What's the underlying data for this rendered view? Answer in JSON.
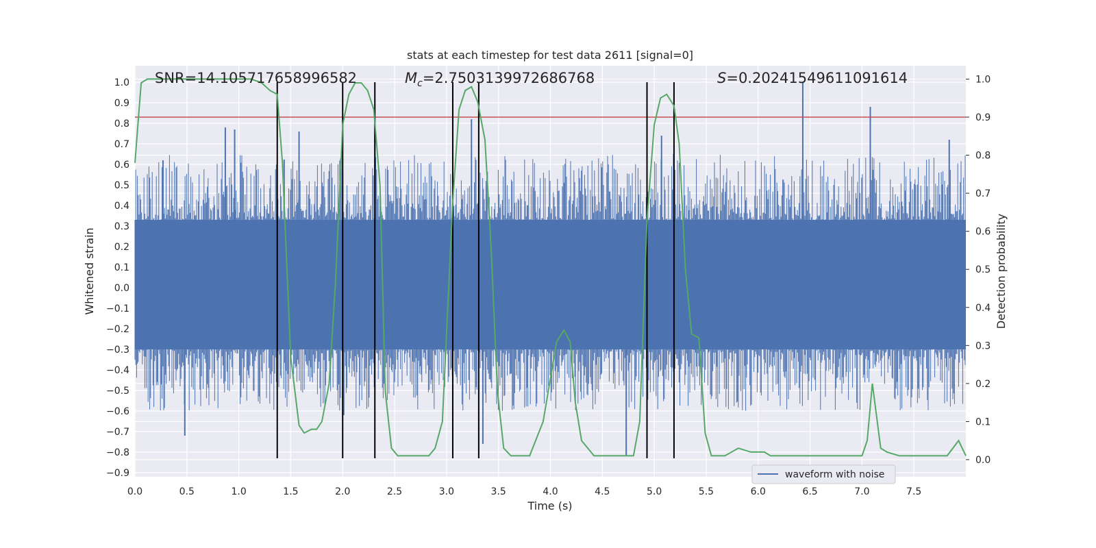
{
  "chart_data": {
    "type": "line",
    "title": "stats at each timestep for test data 2611 [signal=0]",
    "xlabel": "Time (s)",
    "ylabel": "Whitened strain",
    "y2label": "Detection probability",
    "xlim": [
      0.0,
      8.0
    ],
    "ylim": [
      -0.92,
      1.08
    ],
    "y2lim": [
      -0.045,
      1.035
    ],
    "xticks": [
      0.0,
      0.5,
      1.0,
      1.5,
      2.0,
      2.5,
      3.0,
      3.5,
      4.0,
      4.5,
      5.0,
      5.5,
      6.0,
      6.5,
      7.0,
      7.5
    ],
    "yticks": [
      1.0,
      0.9,
      0.8,
      0.7,
      0.6,
      0.5,
      0.4,
      0.3,
      0.2,
      0.1,
      0.0,
      -0.1,
      -0.2,
      -0.3,
      -0.4,
      -0.5,
      -0.6,
      -0.7,
      -0.8,
      -0.9
    ],
    "y2ticks": [
      1.0,
      0.9,
      0.8,
      0.7,
      0.6,
      0.5,
      0.4,
      0.3,
      0.2,
      0.1,
      0.0
    ],
    "annotations": {
      "snr": "SNR=14.105717658996582",
      "mc_symbol": "M",
      "mc_sub": "c",
      "mc_value": "=2.7503139972686768",
      "s_symbol": "S",
      "s_value": "=0.20241549611091614"
    },
    "legend": {
      "label": "waveform with noise",
      "loc": "lower right"
    },
    "threshold": {
      "y2": 0.9,
      "color": "#c44e52"
    },
    "vertical_lines": {
      "x": [
        1.37,
        2.0,
        2.31,
        3.06,
        3.31,
        4.93,
        5.19
      ],
      "y_from": -0.83,
      "y_to": 1.0
    },
    "series": [
      {
        "name": "waveform with noise",
        "axis": "left",
        "color": "#4c72b0",
        "style": "dense noise band",
        "band": [
          -0.3,
          0.33
        ],
        "peaks": [
          {
            "x": 0.27,
            "y": 0.62
          },
          {
            "x": 0.48,
            "y": -0.72
          },
          {
            "x": 0.87,
            "y": 0.78
          },
          {
            "x": 0.96,
            "y": 0.77
          },
          {
            "x": 1.58,
            "y": 0.76
          },
          {
            "x": 2.01,
            "y": -0.62
          },
          {
            "x": 2.31,
            "y": 0.82
          },
          {
            "x": 3.24,
            "y": 0.82
          },
          {
            "x": 3.35,
            "y": -0.76
          },
          {
            "x": 4.73,
            "y": -0.82
          },
          {
            "x": 5.07,
            "y": 0.74
          },
          {
            "x": 6.43,
            "y": 1.0
          },
          {
            "x": 7.08,
            "y": 0.88
          },
          {
            "x": 7.84,
            "y": 0.72
          }
        ]
      },
      {
        "name": "detection probability",
        "axis": "right",
        "color": "#55a868",
        "x": [
          0.0,
          0.06,
          0.12,
          0.25,
          0.5,
          0.75,
          1.0,
          1.12,
          1.22,
          1.3,
          1.37,
          1.42,
          1.5,
          1.58,
          1.63,
          1.7,
          1.75,
          1.8,
          1.87,
          1.93,
          2.0,
          2.06,
          2.12,
          2.18,
          2.24,
          2.3,
          2.36,
          2.41,
          2.47,
          2.53,
          2.58,
          2.63,
          2.75,
          2.83,
          2.89,
          2.96,
          3.06,
          3.12,
          3.18,
          3.24,
          3.3,
          3.37,
          3.43,
          3.49,
          3.55,
          3.62,
          3.68,
          3.74,
          3.8,
          3.93,
          4.06,
          4.13,
          4.19,
          4.24,
          4.3,
          4.42,
          4.6,
          4.67,
          4.73,
          4.8,
          4.86,
          4.93,
          5.0,
          5.06,
          5.12,
          5.19,
          5.24,
          5.3,
          5.36,
          5.43,
          5.49,
          5.55,
          5.62,
          5.68,
          5.81,
          5.93,
          6.0,
          6.06,
          6.12,
          6.18,
          6.25,
          6.31,
          6.5,
          6.62,
          6.8,
          7.0,
          7.05,
          7.1,
          7.18,
          7.24,
          7.36,
          7.45,
          7.55,
          7.82,
          7.93,
          8.0
        ],
        "y": [
          0.78,
          0.99,
          1.0,
          1.0,
          1.0,
          1.0,
          1.0,
          1.0,
          0.99,
          0.97,
          0.96,
          0.78,
          0.27,
          0.09,
          0.07,
          0.08,
          0.08,
          0.1,
          0.2,
          0.46,
          0.88,
          0.96,
          0.99,
          0.99,
          0.97,
          0.92,
          0.72,
          0.18,
          0.03,
          0.01,
          0.01,
          0.01,
          0.01,
          0.01,
          0.03,
          0.1,
          0.68,
          0.92,
          0.97,
          0.98,
          0.94,
          0.84,
          0.55,
          0.18,
          0.03,
          0.01,
          0.01,
          0.01,
          0.01,
          0.1,
          0.31,
          0.34,
          0.31,
          0.15,
          0.05,
          0.01,
          0.01,
          0.01,
          0.01,
          0.01,
          0.1,
          0.63,
          0.88,
          0.95,
          0.96,
          0.93,
          0.83,
          0.5,
          0.33,
          0.32,
          0.07,
          0.01,
          0.01,
          0.01,
          0.03,
          0.02,
          0.02,
          0.02,
          0.01,
          0.01,
          0.01,
          0.01,
          0.01,
          0.01,
          0.01,
          0.01,
          0.05,
          0.2,
          0.03,
          0.02,
          0.01,
          0.01,
          0.01,
          0.01,
          0.05,
          0.01
        ]
      }
    ]
  }
}
